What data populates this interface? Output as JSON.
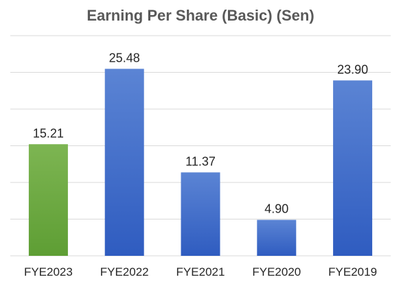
{
  "chart_data": {
    "type": "bar",
    "title": "Earning Per Share (Basic) (Sen)",
    "categories": [
      "FYE2023",
      "FYE2022",
      "FYE2021",
      "FYE2020",
      "FYE2019"
    ],
    "values": [
      15.21,
      25.48,
      11.37,
      4.9,
      23.9
    ],
    "value_labels": [
      "15.21",
      "25.48",
      "11.37",
      "4.90",
      "23.90"
    ],
    "ylim": [
      0,
      30
    ],
    "grid": true,
    "legend": "none",
    "colors": {
      "highlight_top": "#7db552",
      "highlight_bottom": "#5e9e34",
      "bar_top": "#5b84d4",
      "bar_bottom": "#2f5cc0",
      "grid": "#d9d9d9"
    },
    "highlight_index": 0
  }
}
